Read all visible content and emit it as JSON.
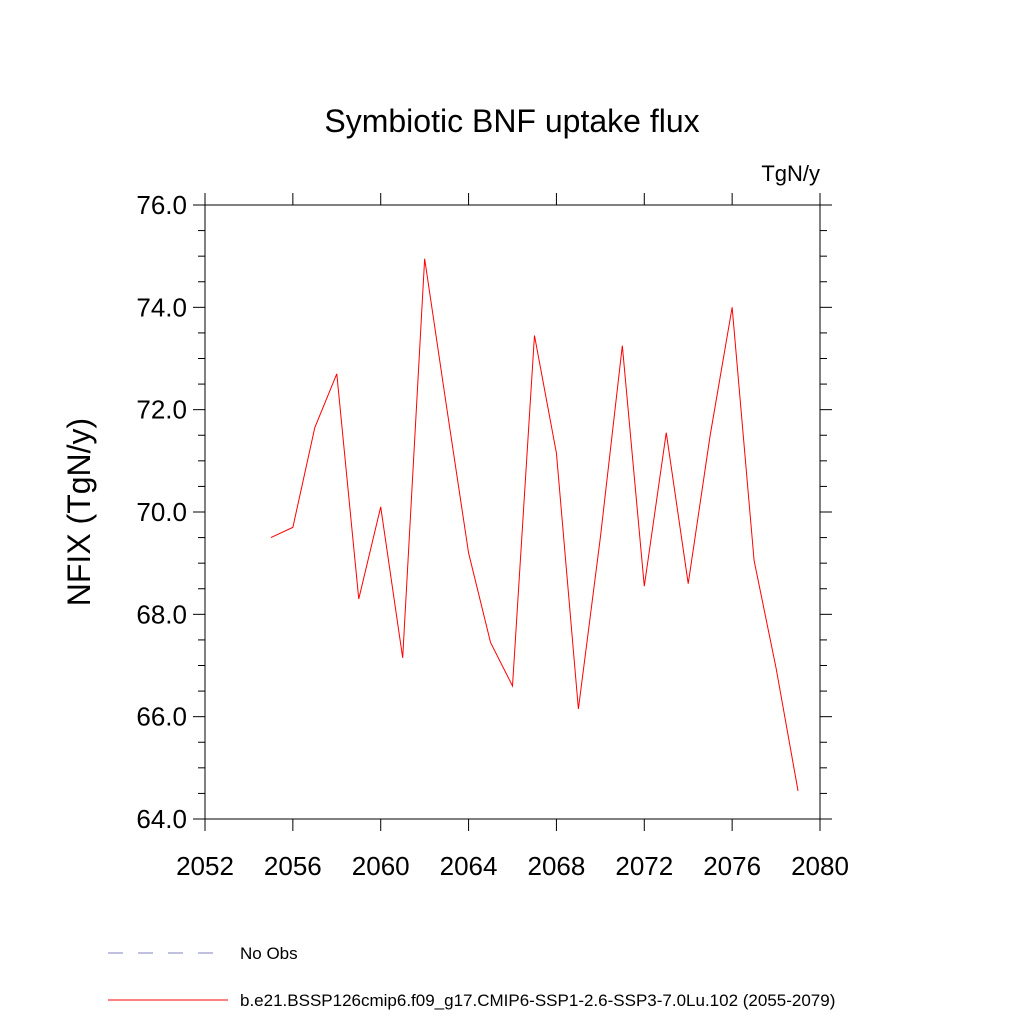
{
  "chart_data": {
    "type": "line",
    "title": "Symbiotic BNF uptake flux",
    "units_label": "TgN/y",
    "ylabel": "NFIX  (TgN/y)",
    "xlabel": "",
    "xlim": [
      2052,
      2080
    ],
    "ylim": [
      64.0,
      76.0
    ],
    "x_ticks": [
      2052,
      2056,
      2060,
      2064,
      2068,
      2072,
      2076,
      2080
    ],
    "x_tick_labels": [
      "2052",
      "2056",
      "2060",
      "2064",
      "2068",
      "2072",
      "2076",
      "2080"
    ],
    "y_ticks": [
      64,
      66,
      68,
      70,
      72,
      74,
      76
    ],
    "y_tick_labels": [
      "64.0",
      "66.0",
      "68.0",
      "70.0",
      "72.0",
      "74.0",
      "76.0"
    ],
    "grid": false,
    "series": [
      {
        "name": "b.e21.BSSP126cmip6.f09_g17.CMIP6-SSP1-2.6-SSP3-7.0Lu.102 (2055-2079)",
        "color": "#ff0000",
        "style": "solid",
        "x": [
          2055,
          2056,
          2057,
          2058,
          2059,
          2060,
          2061,
          2062,
          2063,
          2064,
          2065,
          2066,
          2067,
          2068,
          2069,
          2070,
          2071,
          2072,
          2073,
          2074,
          2075,
          2076,
          2077,
          2078,
          2079
        ],
        "values": [
          69.5,
          69.7,
          71.65,
          72.7,
          68.3,
          70.1,
          67.15,
          74.95,
          72.05,
          69.2,
          67.45,
          66.6,
          73.45,
          71.15,
          66.15,
          69.5,
          73.25,
          68.55,
          71.55,
          68.6,
          71.5,
          74.0,
          69.05,
          66.95,
          64.55
        ]
      }
    ],
    "legend": [
      {
        "label": "No Obs",
        "color": "#8080c0",
        "style": "dashed"
      },
      {
        "label": "b.e21.BSSP126cmip6.f09_g17.CMIP6-SSP1-2.6-SSP3-7.0Lu.102 (2055-2079)",
        "color": "#ff0000",
        "style": "solid"
      }
    ]
  }
}
